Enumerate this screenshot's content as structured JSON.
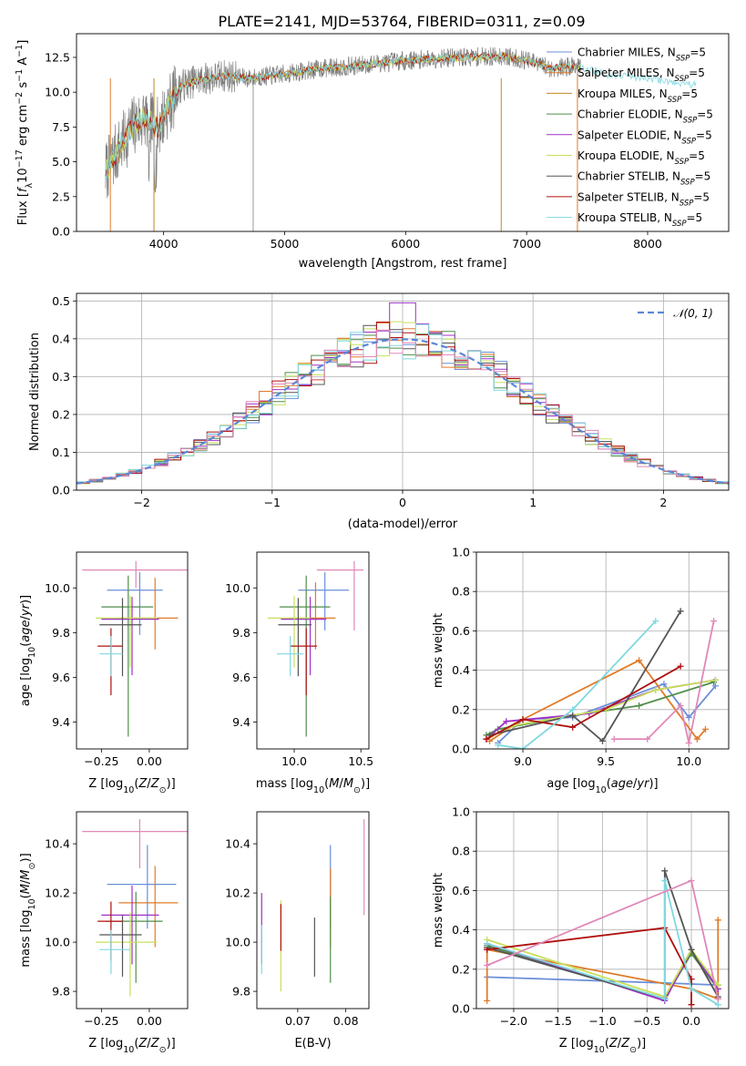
{
  "figure_title": "PLATE=2141, MJD=53764, FIBERID=0311, z=0.09",
  "model_colors": [
    "#6a8fd8",
    "#e07b28",
    "#c08a26",
    "#4f8e4a",
    "#a030c8",
    "#c8e05a",
    "#555555",
    "#b01010",
    "#80d8e0",
    "#e088b8"
  ],
  "chart_data": [
    {
      "id": "spectrum",
      "type": "line",
      "title": "PLATE=2141, MJD=53764, FIBERID=0311, z=0.09",
      "xlabel": "wavelength [Angstrom, rest frame]",
      "ylabel": "Flux [f_λ 10^-17 erg cm^-2 s^-1 A^-1]",
      "xlim": [
        3280,
        8670
      ],
      "ylim": [
        0,
        14.2
      ],
      "xticks": [
        4000,
        5000,
        6000,
        7000,
        8000
      ],
      "yticks": [
        0.0,
        2.5,
        5.0,
        7.5,
        10.0,
        12.5
      ],
      "ytick_labels": [
        "0.0",
        "2.5",
        "5.0",
        "7.5",
        "10.0",
        "12.5"
      ],
      "legend_position": "upper-right",
      "legend": [
        "Chabrier MILES, N_SSP=5",
        "Salpeter MILES, N_SSP=5",
        "Kroupa MILES, N_SSP=5",
        "Chabrier ELODIE, N_SSP=5",
        "Salpeter ELODIE, N_SSP=5",
        "Kroupa ELODIE, N_SSP=5",
        "Chabrier STELIB, N_SSP=5",
        "Salpeter STELIB, N_SSP=5",
        "Kroupa STELIB, N_SSP=5"
      ],
      "continuum_x": [
        3500,
        3650,
        3750,
        3850,
        3950,
        4050,
        4150,
        4300,
        4500,
        4700,
        5000,
        5300,
        5600,
        5900,
        6200,
        6500,
        6800,
        7000,
        7200,
        7400,
        7700,
        8000,
        8200,
        8400
      ],
      "continuum_y": [
        4.0,
        6.2,
        7.6,
        8.2,
        7.4,
        9.2,
        10.5,
        10.9,
        11.2,
        11.0,
        11.3,
        11.7,
        11.9,
        12.2,
        12.4,
        12.5,
        12.6,
        12.3,
        11.7,
        11.9,
        11.2,
        11.0,
        10.7,
        10.5
      ]
    },
    {
      "id": "residuals",
      "type": "histogram",
      "xlabel": "(data-model)/error",
      "ylabel": "Normed distribution",
      "xlim": [
        -2.5,
        2.5
      ],
      "ylim": [
        0,
        0.52
      ],
      "xticks": [
        -2,
        -1,
        0,
        1,
        2
      ],
      "xtick_labels": [
        "−2",
        "−1",
        "0",
        "1",
        "2"
      ],
      "yticks": [
        0.0,
        0.1,
        0.2,
        0.3,
        0.4,
        0.5
      ],
      "ytick_labels": [
        "0.0",
        "0.1",
        "0.2",
        "0.3",
        "0.4",
        "0.5"
      ],
      "grid": true,
      "legend": [
        "𝒩(0, 1)"
      ],
      "legend_position": "upper-right",
      "bin_width": 0.1,
      "reference_curve": "normal(0,1)"
    },
    {
      "id": "age_vs_Z",
      "type": "scatter",
      "xlabel": "Z [log10(Z/Z⊙)]",
      "ylabel": "age  [log10(age/yr)]",
      "xlim": [
        -0.38,
        0.2
      ],
      "ylim": [
        9.28,
        10.16
      ],
      "xticks": [
        -0.25,
        0.0
      ],
      "xtick_labels": [
        "−0.25",
        "0.00"
      ],
      "yticks": [
        9.4,
        9.6,
        9.8,
        10.0
      ],
      "ytick_labels": [
        "9.4",
        "9.6",
        "9.8",
        "10.0"
      ],
      "points": [
        {
          "c": 0,
          "x": -0.05,
          "y": 9.99,
          "xerr": [
            0.17,
            0.12
          ],
          "yerr": [
            0.2,
            0.08
          ]
        },
        {
          "c": 1,
          "x": 0.03,
          "y": 9.865,
          "xerr": [
            0.19,
            0.12
          ],
          "yerr": [
            0.14,
            0.18
          ]
        },
        {
          "c": 3,
          "x": -0.11,
          "y": 9.915,
          "xerr": [
            0.14,
            0.13
          ],
          "yerr": [
            0.58,
            0.14
          ]
        },
        {
          "c": 4,
          "x": -0.09,
          "y": 9.86,
          "xerr": [
            0.16,
            0.14
          ],
          "yerr": [
            0.25,
            0.1
          ]
        },
        {
          "c": 5,
          "x": -0.1,
          "y": 9.865,
          "xerr": [
            0.18,
            0.14
          ],
          "yerr": [
            0.22,
            0.1
          ]
        },
        {
          "c": 6,
          "x": -0.14,
          "y": 9.835,
          "xerr": [
            0.12,
            0.1
          ],
          "yerr": [
            0.23,
            0.12
          ]
        },
        {
          "c": 7,
          "x": -0.2,
          "y": 9.74,
          "xerr": [
            0.07,
            0.06
          ],
          "yerr": [
            0.22,
            0.08
          ]
        },
        {
          "c": 8,
          "x": -0.2,
          "y": 9.705,
          "xerr": [
            0.06,
            0.06
          ],
          "yerr": [
            0.1,
            0.08
          ]
        },
        {
          "c": 9,
          "x": -0.07,
          "y": 10.08,
          "xerr": [
            0.28,
            0.3
          ],
          "yerr": [
            0.08,
            0.04
          ]
        }
      ]
    },
    {
      "id": "age_vs_mass",
      "type": "scatter",
      "xlabel": "mass [log10(M/M⊙)]",
      "ylabel": "",
      "xlim": [
        9.72,
        10.56
      ],
      "ylim": [
        9.28,
        10.16
      ],
      "xticks": [
        10.0,
        10.5
      ],
      "xtick_labels": [
        "10.0",
        "10.5"
      ],
      "yticks": [
        9.4,
        9.6,
        9.8,
        10.0
      ],
      "ytick_labels": [
        "9.4",
        "9.6",
        "9.8",
        "10.0"
      ],
      "points": [
        {
          "c": 0,
          "x": 10.23,
          "y": 9.99,
          "xerr": [
            0.2,
            0.18
          ],
          "yerr": [
            0.18,
            0.08
          ]
        },
        {
          "c": 1,
          "x": 10.16,
          "y": 9.865,
          "xerr": [
            0.2,
            0.15
          ],
          "yerr": [
            0.14,
            0.16
          ]
        },
        {
          "c": 3,
          "x": 10.09,
          "y": 9.915,
          "xerr": [
            0.2,
            0.18
          ],
          "yerr": [
            0.58,
            0.14
          ]
        },
        {
          "c": 4,
          "x": 10.12,
          "y": 9.86,
          "xerr": [
            0.22,
            0.12
          ],
          "yerr": [
            0.25,
            0.1
          ]
        },
        {
          "c": 5,
          "x": 10.0,
          "y": 9.865,
          "xerr": [
            0.2,
            0.12
          ],
          "yerr": [
            0.22,
            0.1
          ]
        },
        {
          "c": 6,
          "x": 10.03,
          "y": 9.835,
          "xerr": [
            0.15,
            0.1
          ],
          "yerr": [
            0.23,
            0.12
          ]
        },
        {
          "c": 7,
          "x": 10.09,
          "y": 9.74,
          "xerr": [
            0.12,
            0.08
          ],
          "yerr": [
            0.22,
            0.08
          ]
        },
        {
          "c": 8,
          "x": 9.97,
          "y": 9.705,
          "xerr": [
            0.1,
            0.1
          ],
          "yerr": [
            0.1,
            0.08
          ]
        },
        {
          "c": 9,
          "x": 10.45,
          "y": 10.08,
          "xerr": [
            0.28,
            0.07
          ],
          "yerr": [
            0.27,
            0.04
          ]
        }
      ]
    },
    {
      "id": "weight_vs_age",
      "type": "line",
      "xlabel": "age  [log10(age/yr)]",
      "ylabel": "mass weight",
      "xlim": [
        8.72,
        10.24
      ],
      "ylim": [
        0,
        1.0
      ],
      "xticks": [
        9.0,
        9.5,
        10.0
      ],
      "xtick_labels": [
        "9.0",
        "9.5",
        "10.0"
      ],
      "yticks": [
        0.0,
        0.2,
        0.4,
        0.6,
        0.8,
        1.0
      ],
      "ytick_labels": [
        "0.0",
        "0.2",
        "0.4",
        "0.6",
        "0.8",
        "1.0"
      ],
      "grid": true,
      "series": [
        {
          "c": 0,
          "x": [
            8.85,
            9.0,
            9.3,
            9.85,
            10.0,
            10.16
          ],
          "y": [
            0.03,
            0.15,
            0.16,
            0.33,
            0.16,
            0.32
          ]
        },
        {
          "c": 1,
          "x": [
            8.8,
            9.0,
            9.7,
            10.05,
            10.1
          ],
          "y": [
            0.04,
            0.15,
            0.45,
            0.05,
            0.1
          ]
        },
        {
          "c": 3,
          "x": [
            8.78,
            8.85,
            9.3,
            9.7,
            10.15
          ],
          "y": [
            0.07,
            0.1,
            0.17,
            0.22,
            0.34
          ]
        },
        {
          "c": 4,
          "x": [
            8.78,
            8.9,
            9.4,
            9.8,
            10.16
          ],
          "y": [
            0.05,
            0.14,
            0.18,
            0.3,
            0.35
          ]
        },
        {
          "c": 5,
          "x": [
            8.8,
            8.95,
            9.5,
            9.8,
            10.16
          ],
          "y": [
            0.06,
            0.12,
            0.2,
            0.3,
            0.35
          ]
        },
        {
          "c": 6,
          "x": [
            8.8,
            9.3,
            9.48,
            9.95
          ],
          "y": [
            0.07,
            0.17,
            0.04,
            0.7
          ]
        },
        {
          "c": 7,
          "x": [
            8.78,
            9.0,
            9.3,
            9.95
          ],
          "y": [
            0.05,
            0.15,
            0.11,
            0.42
          ]
        },
        {
          "c": 8,
          "x": [
            8.85,
            9.0,
            9.3,
            9.8
          ],
          "y": [
            0.02,
            0.0,
            0.2,
            0.65
          ]
        },
        {
          "c": 9,
          "x": [
            9.55,
            9.75,
            9.95,
            10.0,
            10.15
          ],
          "y": [
            0.05,
            0.05,
            0.22,
            0.03,
            0.65
          ]
        }
      ]
    },
    {
      "id": "mass_vs_Z",
      "type": "scatter",
      "xlabel": "Z [log10(Z/Z⊙)]",
      "ylabel": "mass [log10(M/M⊙)]",
      "xlim": [
        -0.38,
        0.2
      ],
      "ylim": [
        9.73,
        10.53
      ],
      "xticks": [
        -0.25,
        0.0
      ],
      "xtick_labels": [
        "−0.25",
        "0.00"
      ],
      "yticks": [
        9.8,
        10.0,
        10.2,
        10.4
      ],
      "ytick_labels": [
        "9.8",
        "10.0",
        "10.2",
        "10.4"
      ],
      "points": [
        {
          "c": 0,
          "x": -0.01,
          "y": 10.235,
          "xerr": [
            0.21,
            0.15
          ],
          "yerr": [
            0.18,
            0.16
          ]
        },
        {
          "c": 1,
          "x": 0.03,
          "y": 10.16,
          "xerr": [
            0.19,
            0.12
          ],
          "yerr": [
            0.18,
            0.15
          ]
        },
        {
          "c": 3,
          "x": -0.07,
          "y": 10.085,
          "xerr": [
            0.16,
            0.14
          ],
          "yerr": [
            0.25,
            0.12
          ]
        },
        {
          "c": 4,
          "x": -0.09,
          "y": 10.11,
          "xerr": [
            0.16,
            0.14
          ],
          "yerr": [
            0.2,
            0.12
          ]
        },
        {
          "c": 5,
          "x": -0.1,
          "y": 10.0,
          "xerr": [
            0.18,
            0.14
          ],
          "yerr": [
            0.22,
            0.12
          ]
        },
        {
          "c": 6,
          "x": -0.14,
          "y": 10.03,
          "xerr": [
            0.12,
            0.1
          ],
          "yerr": [
            0.17,
            0.08
          ]
        },
        {
          "c": 7,
          "x": -0.2,
          "y": 10.085,
          "xerr": [
            0.07,
            0.06
          ],
          "yerr": [
            0.16,
            0.08
          ]
        },
        {
          "c": 8,
          "x": -0.2,
          "y": 9.97,
          "xerr": [
            0.06,
            0.1
          ],
          "yerr": [
            0.1,
            0.08
          ]
        },
        {
          "c": 9,
          "x": -0.05,
          "y": 10.45,
          "xerr": [
            0.3,
            0.27
          ],
          "yerr": [
            0.15,
            0.05
          ]
        }
      ]
    },
    {
      "id": "mass_vs_EBV",
      "type": "scatter",
      "xlabel": "E(B-V)",
      "ylabel": "",
      "xlim": [
        0.0615,
        0.0848
      ],
      "ylim": [
        9.73,
        10.53
      ],
      "xticks": [
        0.07,
        0.08
      ],
      "xtick_labels": [
        "0.07",
        "0.08"
      ],
      "yticks": [
        9.8,
        10.0,
        10.2,
        10.4
      ],
      "ytick_labels": [
        "9.8",
        "10.0",
        "10.2",
        "10.4"
      ],
      "points": [
        {
          "c": 0,
          "x": 0.0768,
          "y": 10.235,
          "xerr": [
            0,
            0
          ],
          "yerr": [
            0.18,
            0.16
          ]
        },
        {
          "c": 1,
          "x": 0.0768,
          "y": 10.16,
          "xerr": [
            0,
            0
          ],
          "yerr": [
            0.18,
            0.14
          ]
        },
        {
          "c": 3,
          "x": 0.0768,
          "y": 10.085,
          "xerr": [
            0,
            0
          ],
          "yerr": [
            0.25,
            0.1
          ]
        },
        {
          "c": 4,
          "x": 0.0625,
          "y": 10.11,
          "xerr": [
            0,
            0
          ],
          "yerr": [
            0.2,
            0.09
          ]
        },
        {
          "c": 5,
          "x": 0.0665,
          "y": 10.0,
          "xerr": [
            0,
            0
          ],
          "yerr": [
            0.2,
            0.17
          ]
        },
        {
          "c": 6,
          "x": 0.0735,
          "y": 10.03,
          "xerr": [
            0,
            0
          ],
          "yerr": [
            0.17,
            0.07
          ]
        },
        {
          "c": 7,
          "x": 0.0665,
          "y": 10.085,
          "xerr": [
            0,
            0
          ],
          "yerr": [
            0.12,
            0.07
          ]
        },
        {
          "c": 8,
          "x": 0.0625,
          "y": 9.97,
          "xerr": [
            0,
            0
          ],
          "yerr": [
            0.1,
            0.1
          ]
        },
        {
          "c": 9,
          "x": 0.0838,
          "y": 10.45,
          "xerr": [
            0,
            0
          ],
          "yerr": [
            0.34,
            0.05
          ]
        }
      ]
    },
    {
      "id": "weight_vs_Z",
      "type": "line",
      "xlabel": "Z [log10(Z/Z⊙)]",
      "ylabel": "mass weight",
      "xlim": [
        -2.42,
        0.42
      ],
      "ylim": [
        0,
        1.0
      ],
      "xticks": [
        -2.0,
        -1.5,
        -1.0,
        -0.5,
        0.0
      ],
      "xtick_labels": [
        "−2.0",
        "−1.5",
        "−1.0",
        "−0.5",
        "0.0"
      ],
      "yticks": [
        0.0,
        0.2,
        0.4,
        0.6,
        0.8,
        1.0
      ],
      "ytick_labels": [
        "0.0",
        "0.2",
        "0.4",
        "0.6",
        "0.8",
        "1.0"
      ],
      "grid": true,
      "series": [
        {
          "c": 0,
          "x": [
            -2.3,
            -0.3,
            0.3
          ],
          "y": [
            0.16,
            0.13,
            0.12
          ]
        },
        {
          "c": 1,
          "x": [
            -2.3,
            -2.3,
            0.0,
            0.3,
            0.3
          ],
          "y": [
            0.04,
            0.3,
            0.1,
            0.05,
            0.45
          ]
        },
        {
          "c": 3,
          "x": [
            -2.3,
            -0.3,
            0.0,
            0.3
          ],
          "y": [
            0.32,
            0.05,
            0.28,
            0.1
          ]
        },
        {
          "c": 4,
          "x": [
            -2.3,
            -0.3,
            0.0,
            0.3
          ],
          "y": [
            0.33,
            0.04,
            0.3,
            0.1
          ]
        },
        {
          "c": 5,
          "x": [
            -2.3,
            -0.3,
            0.0,
            0.3
          ],
          "y": [
            0.35,
            0.06,
            0.3,
            0.12
          ]
        },
        {
          "c": 6,
          "x": [
            -2.3,
            -0.3,
            -0.3,
            0.0,
            0.3
          ],
          "y": [
            0.31,
            0.05,
            0.7,
            0.3,
            0.06
          ]
        },
        {
          "c": 7,
          "x": [
            -2.3,
            -0.3,
            0.0,
            0.0
          ],
          "y": [
            0.3,
            0.41,
            0.15,
            0.02
          ]
        },
        {
          "c": 8,
          "x": [
            -2.3,
            -0.3,
            -0.3,
            0.0,
            0.3
          ],
          "y": [
            0.33,
            0.05,
            0.65,
            0.1,
            0.02
          ]
        },
        {
          "c": 9,
          "x": [
            -2.3,
            0.0,
            0.3
          ],
          "y": [
            0.22,
            0.65,
            0.05
          ]
        }
      ]
    }
  ]
}
